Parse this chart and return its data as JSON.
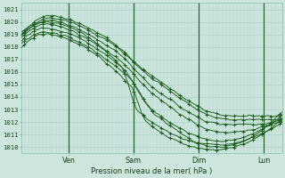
{
  "title": "Pression niveau de la mer( hPa )",
  "ylabel_vals": [
    1010,
    1011,
    1012,
    1013,
    1014,
    1015,
    1016,
    1017,
    1018,
    1019,
    1020,
    1021
  ],
  "ylim": [
    1009.5,
    1021.5
  ],
  "day_labels": [
    "Ven",
    "Sam",
    "Dim",
    "Lun"
  ],
  "day_positions": [
    0.18,
    0.43,
    0.68,
    0.93
  ],
  "bg_color": "#cce5dd",
  "grid_color_minor": "#aacfc8",
  "grid_color_major": "#88b8b0",
  "line_color": "#1a5c1a",
  "vline_color": "#2a6632",
  "text_color": "#1a4020",
  "xlim": [
    0,
    1
  ]
}
